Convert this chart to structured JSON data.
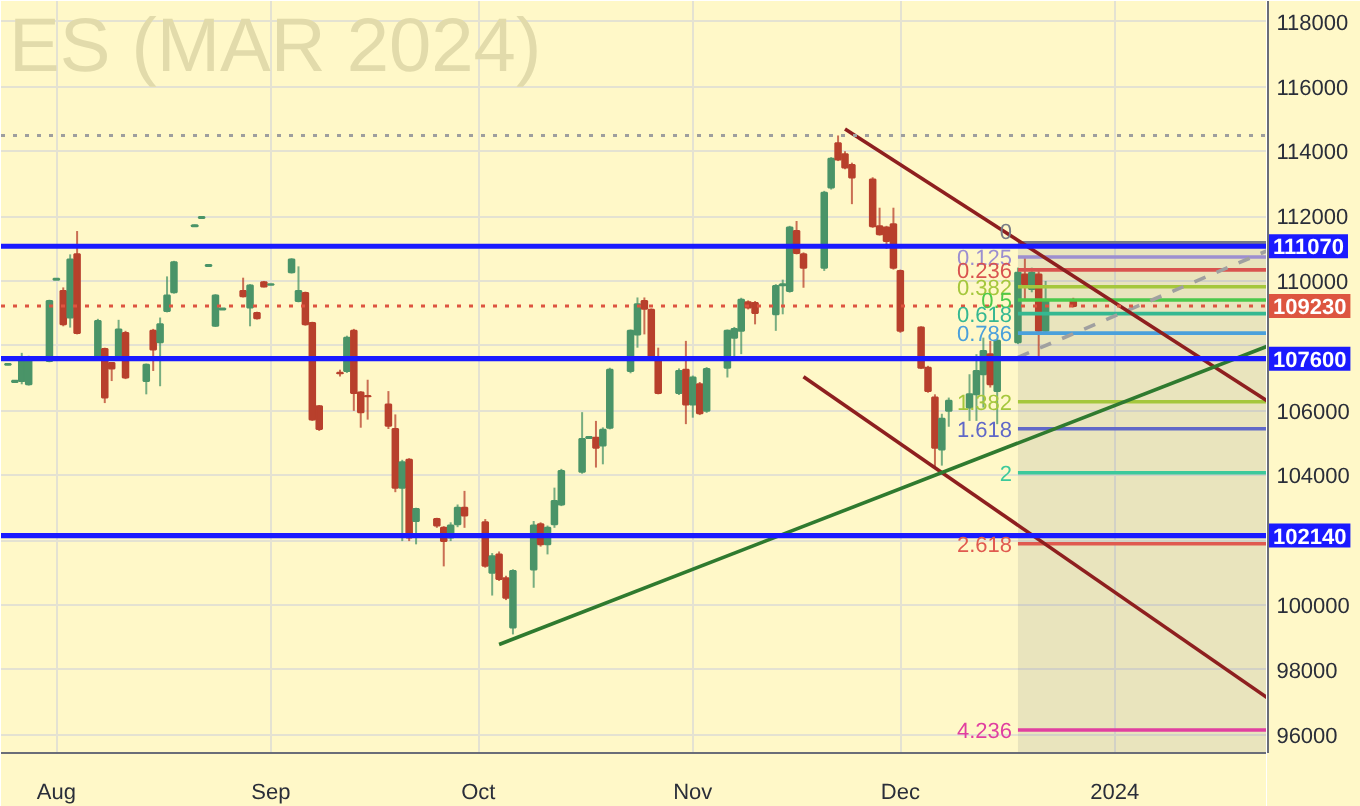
{
  "chart_data": {
    "type": "candlestick",
    "title": "ES (MAR 2024)",
    "x": [
      "2023-07-25",
      "2023-07-26",
      "2023-07-27",
      "2023-07-28",
      "2023-07-31",
      "2023-08-01",
      "2023-08-02",
      "2023-08-03",
      "2023-08-04",
      "2023-08-07",
      "2023-08-08",
      "2023-08-09",
      "2023-08-10",
      "2023-08-11",
      "2023-08-14",
      "2023-08-15",
      "2023-08-16",
      "2023-08-17",
      "2023-08-18",
      "2023-08-21",
      "2023-08-22",
      "2023-08-23",
      "2023-08-24",
      "2023-08-25",
      "2023-08-28",
      "2023-08-29",
      "2023-08-30",
      "2023-08-31",
      "2023-09-01",
      "2023-09-04",
      "2023-09-05",
      "2023-09-06",
      "2023-09-07",
      "2023-09-08",
      "2023-09-11",
      "2023-09-12",
      "2023-09-13",
      "2023-09-14",
      "2023-09-15",
      "2023-09-18",
      "2023-09-19",
      "2023-09-20",
      "2023-09-21",
      "2023-09-22",
      "2023-09-25",
      "2023-09-26",
      "2023-09-27",
      "2023-09-28",
      "2023-09-29",
      "2023-10-02",
      "2023-10-03",
      "2023-10-04",
      "2023-10-05",
      "2023-10-06",
      "2023-10-09",
      "2023-10-10",
      "2023-10-11",
      "2023-10-12",
      "2023-10-13",
      "2023-10-16",
      "2023-10-17",
      "2023-10-18",
      "2023-10-19",
      "2023-10-20",
      "2023-10-23",
      "2023-10-24",
      "2023-10-25",
      "2023-10-26",
      "2023-10-27",
      "2023-10-30",
      "2023-10-31",
      "2023-11-01",
      "2023-11-02",
      "2023-11-03",
      "2023-11-06",
      "2023-11-07",
      "2023-11-08",
      "2023-11-09",
      "2023-11-10",
      "2023-11-13",
      "2023-11-14",
      "2023-11-15",
      "2023-11-16",
      "2023-11-17",
      "2023-11-20",
      "2023-11-21",
      "2023-11-22",
      "2023-11-23",
      "2023-11-24",
      "2023-11-27",
      "2023-11-28",
      "2023-11-29",
      "2023-11-30",
      "2023-12-01",
      "2023-12-04",
      "2023-12-05",
      "2023-12-06",
      "2023-12-07",
      "2023-12-08",
      "2023-12-11",
      "2023-12-12",
      "2023-12-13",
      "2023-12-14",
      "2023-12-15",
      "2023-12-18",
      "2023-12-19",
      "2023-12-20",
      "2023-12-21",
      "2023-12-22",
      "2023-12-26"
    ],
    "ohlc": [
      [
        107410,
        107460,
        107400,
        107440
      ],
      [
        106880,
        106940,
        106860,
        106920
      ],
      [
        106910,
        107780,
        106810,
        107630
      ],
      [
        106810,
        107690,
        106770,
        107570
      ],
      [
        107530,
        109420,
        107490,
        109380
      ],
      [
        110040,
        110090,
        110030,
        110070
      ],
      [
        109690,
        109800,
        108600,
        108660
      ],
      [
        108870,
        110820,
        108560,
        110660
      ],
      [
        110820,
        111540,
        108350,
        108390
      ],
      [
        107630,
        108830,
        107570,
        108760
      ],
      [
        107900,
        107940,
        106230,
        106400
      ],
      [
        107470,
        107490,
        106910,
        107300
      ],
      [
        107690,
        108800,
        107630,
        108500
      ],
      [
        108390,
        108460,
        106970,
        107020
      ],
      [
        106910,
        107450,
        106500,
        107410
      ],
      [
        108460,
        108520,
        107220,
        107880
      ],
      [
        108110,
        108870,
        106750,
        108660
      ],
      [
        109070,
        110140,
        109030,
        109550
      ],
      [
        109650,
        110620,
        109610,
        110580
      ],
      [
        111690,
        111740,
        111680,
        111720
      ],
      [
        111940,
        111980,
        111930,
        111970
      ],
      [
        110460,
        110500,
        110450,
        110490
      ],
      [
        108620,
        109590,
        108580,
        109550
      ],
      [
        109120,
        109160,
        109110,
        109150
      ],
      [
        109690,
        110100,
        109490,
        109530
      ],
      [
        109180,
        109900,
        108600,
        109860
      ],
      [
        109010,
        109050,
        108810,
        108850
      ],
      [
        109960,
        110000,
        109800,
        109830
      ],
      [
        109880,
        109910,
        109870,
        109900
      ],
      [
        110270,
        110700,
        110230,
        110660
      ],
      [
        109380,
        110450,
        109340,
        109690
      ],
      [
        109630,
        109670,
        108620,
        108660
      ],
      [
        108700,
        108740,
        105680,
        105720
      ],
      [
        106130,
        106170,
        105370,
        105430
      ],
      [
        107170,
        107260,
        107050,
        107150
      ],
      [
        107220,
        108310,
        107160,
        108250
      ],
      [
        108460,
        108520,
        105990,
        106540
      ],
      [
        106560,
        106600,
        105470,
        105950
      ],
      [
        106450,
        106950,
        105720,
        106440
      ],
      [
        106190,
        106600,
        105430,
        105530
      ],
      [
        105430,
        105880,
        103480,
        103620
      ],
      [
        103620,
        104480,
        101970,
        104400
      ],
      [
        104480,
        104530,
        101970,
        102080
      ],
      [
        102590,
        103000,
        101870,
        102960
      ],
      [
        102650,
        102690,
        102380,
        102450
      ],
      [
        102380,
        102430,
        101190,
        101970
      ],
      [
        102080,
        102550,
        101970,
        102450
      ],
      [
        102490,
        103100,
        102400,
        103000
      ],
      [
        103000,
        103520,
        102380,
        102760
      ],
      [
        102550,
        102650,
        101150,
        101210
      ],
      [
        100990,
        101600,
        100290,
        101500
      ],
      [
        101560,
        101650,
        100740,
        100800
      ],
      [
        100820,
        100900,
        100150,
        100220
      ],
      [
        99300,
        101100,
        99090,
        101050
      ],
      [
        101090,
        102590,
        100530,
        102450
      ],
      [
        102490,
        102550,
        101800,
        101870
      ],
      [
        101870,
        102450,
        101560,
        102380
      ],
      [
        102490,
        103620,
        102380,
        103210
      ],
      [
        103100,
        104200,
        103050,
        104130
      ],
      [
        104110,
        105950,
        104050,
        105120
      ],
      [
        105150,
        105200,
        105130,
        105180
      ],
      [
        105160,
        105680,
        104240,
        104850
      ],
      [
        104920,
        105480,
        104340,
        105410
      ],
      [
        105470,
        107320,
        105420,
        107260
      ],
      [
        107220,
        108500,
        107150,
        108460
      ],
      [
        108350,
        109490,
        107940,
        109280
      ],
      [
        109380,
        109490,
        108350,
        109140
      ],
      [
        109110,
        109150,
        107550,
        107590
      ],
      [
        107590,
        107940,
        106500,
        106540
      ],
      [
        106540,
        107300,
        106480,
        107220
      ],
      [
        107260,
        108150,
        105580,
        106190
      ],
      [
        106190,
        107080,
        105780,
        107020
      ],
      [
        106810,
        106880,
        105860,
        105920
      ],
      [
        105990,
        107340,
        105930,
        107280
      ],
      [
        107320,
        108500,
        107020,
        108460
      ],
      [
        108250,
        108580,
        107630,
        108520
      ],
      [
        108460,
        109480,
        107740,
        109420
      ],
      [
        109340,
        109400,
        109120,
        109180
      ],
      [
        109320,
        109380,
        108660,
        109010
      ],
      [
        108970,
        109900,
        108460,
        109840
      ],
      [
        109870,
        110040,
        108970,
        109900
      ],
      [
        109690,
        111700,
        109640,
        111650
      ],
      [
        111540,
        111850,
        110820,
        110860
      ],
      [
        110820,
        110880,
        109790,
        110410
      ],
      [
        110410,
        112780,
        110310,
        112720
      ],
      [
        112880,
        113820,
        112820,
        113770
      ],
      [
        114250,
        114490,
        113700,
        113750
      ],
      [
        113910,
        114000,
        113450,
        113500
      ],
      [
        113580,
        113650,
        112370,
        113190
      ],
      [
        113130,
        113200,
        111640,
        111690
      ],
      [
        111690,
        112260,
        111400,
        111440
      ],
      [
        111650,
        111700,
        110990,
        111230
      ],
      [
        111750,
        112260,
        110350,
        110410
      ],
      [
        110310,
        110350,
        108400,
        108460
      ],
      [
        108560,
        108600,
        107280,
        107320
      ],
      [
        107320,
        107380,
        106550,
        106600
      ],
      [
        106400,
        106500,
        104240,
        104850
      ],
      [
        104800,
        105900,
        104300,
        105750
      ],
      [
        105990,
        106400,
        105500,
        106300
      ],
      [
        106090,
        107120,
        105680,
        106500
      ],
      [
        106500,
        107740,
        105680,
        107220
      ],
      [
        107120,
        108250,
        106090,
        107840
      ],
      [
        107740,
        108150,
        106710,
        106810
      ],
      [
        106600,
        108200,
        105580,
        108150
      ],
      [
        108110,
        110410,
        108050,
        110250
      ],
      [
        110200,
        110720,
        109380,
        109900
      ],
      [
        109750,
        110410,
        109650,
        110250
      ],
      [
        110200,
        110300,
        107630,
        108460
      ],
      [
        108460,
        110000,
        108350,
        109380
      ],
      [
        109400,
        109480,
        109180,
        109230
      ]
    ],
    "colors": [
      "#4a9468",
      "#4a9468",
      "#4a9468",
      "#4a9468",
      "#4a9468",
      "#4a9468",
      "#b8402c",
      "#4a9468",
      "#b8402c",
      "#4a9468",
      "#b8402c",
      "#b8402c",
      "#4a9468",
      "#b8402c",
      "#4a9468",
      "#b8402c",
      "#4a9468",
      "#4a9468",
      "#4a9468",
      "#4a9468",
      "#4a9468",
      "#4a9468",
      "#4a9468",
      "#4a9468",
      "#b8402c",
      "#4a9468",
      "#b8402c",
      "#b8402c",
      "#4a9468",
      "#4a9468",
      "#4a9468",
      "#b8402c",
      "#b8402c",
      "#b8402c",
      "#b8402c",
      "#4a9468",
      "#b8402c",
      "#b8402c",
      "#b8402c",
      "#b8402c",
      "#b8402c",
      "#4a9468",
      "#b8402c",
      "#4a9468",
      "#b8402c",
      "#b8402c",
      "#4a9468",
      "#4a9468",
      "#b8402c",
      "#b8402c",
      "#4a9468",
      "#b8402c",
      "#b8402c",
      "#4a9468",
      "#4a9468",
      "#b8402c",
      "#4a9468",
      "#4a9468",
      "#4a9468",
      "#4a9468",
      "#4a9468",
      "#b8402c",
      "#4a9468",
      "#4a9468",
      "#4a9468",
      "#4a9468",
      "#b8402c",
      "#b8402c",
      "#b8402c",
      "#4a9468",
      "#b8402c",
      "#4a9468",
      "#b8402c",
      "#4a9468",
      "#4a9468",
      "#4a9468",
      "#4a9468",
      "#b8402c",
      "#b8402c",
      "#4a9468",
      "#4a9468",
      "#4a9468",
      "#b8402c",
      "#b8402c",
      "#4a9468",
      "#4a9468",
      "#b8402c",
      "#b8402c",
      "#b8402c",
      "#b8402c",
      "#b8402c",
      "#b8402c",
      "#b8402c",
      "#b8402c",
      "#b8402c",
      "#b8402c",
      "#b8402c",
      "#4a9468",
      "#4a9468",
      "#4a9468",
      "#4a9468",
      "#4a9468",
      "#b8402c",
      "#4a9468",
      "#4a9468",
      "#b8402c",
      "#4a9468",
      "#b8402c",
      "#4a9468",
      "#b8402c"
    ],
    "series": [
      {
        "type": "area",
        "name": "0",
        "color": "#787b86",
        "x": [
          "2023-12-18",
          "2024-01-23"
        ],
        "values": [
          111180,
          111180
        ]
      },
      {
        "type": "line",
        "name": "0.125",
        "color": "#9c8fd0",
        "x": [
          "2023-12-18",
          "2024-01-23"
        ],
        "values": [
          110740,
          110740
        ]
      },
      {
        "type": "line",
        "name": "0.236",
        "color": "#d9534f",
        "x": [
          "2023-12-18",
          "2024-01-23"
        ],
        "values": [
          110340,
          110340
        ]
      },
      {
        "type": "line",
        "name": "0.382",
        "color": "#a5c73c",
        "x": [
          "2023-12-18",
          "2024-01-23"
        ],
        "values": [
          109820,
          109820
        ]
      },
      {
        "type": "line",
        "name": "0.5",
        "color": "#4cc94c",
        "x": [
          "2023-12-18",
          "2024-01-23"
        ],
        "values": [
          109410,
          109410
        ]
      },
      {
        "type": "line",
        "name": "0.618",
        "color": "#35b891",
        "x": [
          "2023-12-18",
          "2024-01-23"
        ],
        "values": [
          108990,
          108990
        ]
      },
      {
        "type": "line",
        "name": "0.786",
        "color": "#4aa0db",
        "x": [
          "2023-12-18",
          "2024-01-23"
        ],
        "values": [
          108390,
          108390
        ]
      },
      {
        "type": "line",
        "name": "1.382",
        "color": "#a5c73c",
        "x": [
          "2023-12-18",
          "2024-01-23"
        ],
        "values": [
          106270,
          106270
        ]
      },
      {
        "type": "line",
        "name": "1.618",
        "color": "#6068c8",
        "x": [
          "2023-12-18",
          "2024-01-23"
        ],
        "values": [
          105440,
          105440
        ]
      },
      {
        "type": "line",
        "name": "2",
        "color": "#3cc99b",
        "x": [
          "2023-12-18",
          "2024-01-23"
        ],
        "values": [
          104080,
          104080
        ]
      },
      {
        "type": "line",
        "name": "2.618",
        "color": "#e05a4f",
        "x": [
          "2023-12-18",
          "2024-01-23"
        ],
        "values": [
          101890,
          101890
        ]
      },
      {
        "type": "line",
        "name": "4.236",
        "color": "#e03fa0",
        "x": [
          "2023-12-18",
          "2024-01-23"
        ],
        "values": [
          96140,
          96140
        ]
      },
      {
        "type": "line",
        "color": "#a0a0a0",
        "line_style": "dashed",
        "x": [
          "2023-12-18",
          "2024-01-23"
        ],
        "values": [
          107640,
          110930
        ]
      },
      {
        "type": "line",
        "color": "#8e1f1f",
        "x": [
          "2023-11-23",
          "2024-01-23"
        ],
        "values": [
          114690,
          106300
        ]
      },
      {
        "type": "line",
        "color": "#8e1f1f",
        "x": [
          "2023-11-17",
          "2024-01-23"
        ],
        "values": [
          107040,
          97140
        ]
      },
      {
        "type": "line",
        "color": "#2f7a2f",
        "x": [
          "2023-10-04",
          "2024-01-23"
        ],
        "values": [
          98780,
          107980
        ]
      }
    ],
    "ref_lines": [
      {
        "axis": "y",
        "value": 114490,
        "color": "#9e9e9e",
        "line_style": "dotted"
      },
      {
        "axis": "y",
        "value": 111070,
        "label": "111070",
        "color": "#1a1aff"
      },
      {
        "axis": "y",
        "value": 109230,
        "label": "109230",
        "color": "#dd5540",
        "line_style": "dotted"
      },
      {
        "axis": "y",
        "value": 107600,
        "label": "107600",
        "color": "#1a1aff"
      },
      {
        "axis": "y",
        "value": 102140,
        "label": "102140",
        "color": "#1a1aff"
      }
    ],
    "xlim": [
      "2023-07-24",
      "2024-01-23"
    ],
    "xticks": [
      {
        "value": "2023-08-01",
        "label": "Aug"
      },
      {
        "value": "2023-09-01",
        "label": "Sep"
      },
      {
        "value": "2023-10-01",
        "label": "Oct"
      },
      {
        "value": "2023-11-01",
        "label": "Nov"
      },
      {
        "value": "2023-12-01",
        "label": "Dec"
      },
      {
        "value": "2024-01-01",
        "label": "2024"
      }
    ],
    "ylim": [
      95430,
      118640
    ],
    "yticks": [
      96000,
      98000,
      100000,
      {
        "value": 102000,
        "label": null
      },
      104000,
      106000,
      {
        "value": 108000,
        "label": null
      },
      110000,
      112000,
      114000,
      116000,
      118000
    ],
    "grid": true
  }
}
